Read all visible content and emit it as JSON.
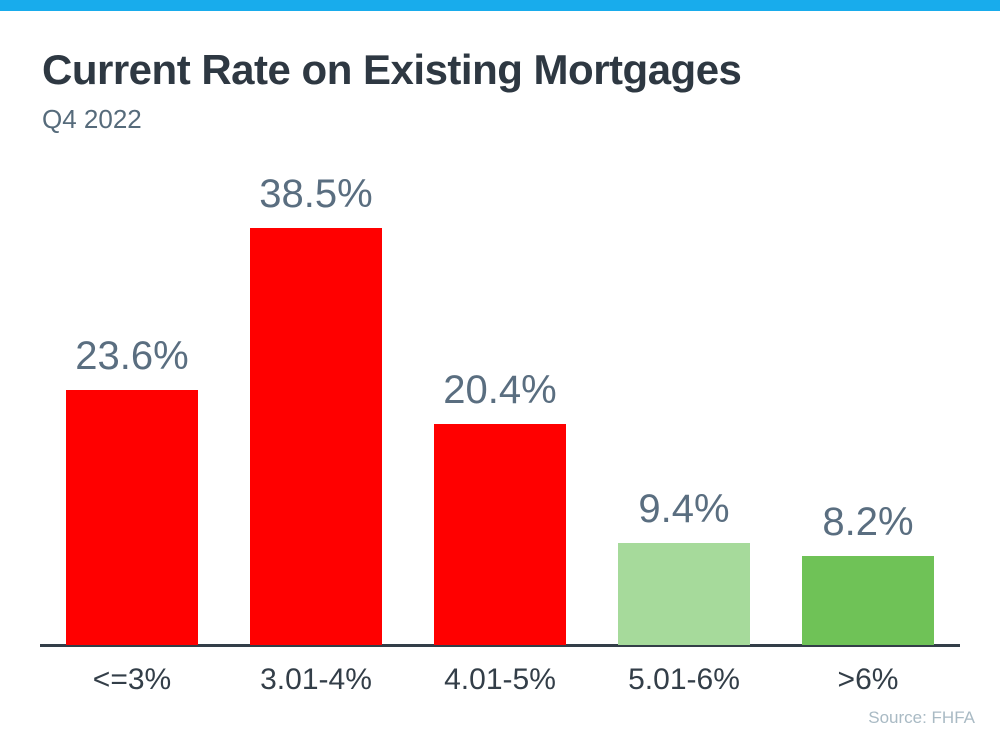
{
  "page": {
    "accent_bar_color": "#18ACEC",
    "title": "Current Rate on Existing Mortgages",
    "subtitle": "Q4 2022",
    "source": "Source: FHFA"
  },
  "chart_data": {
    "type": "bar",
    "title": "Current Rate on Existing Mortgages",
    "subtitle": "Q4 2022",
    "categories": [
      "<=3%",
      "3.01-4%",
      "4.01-5%",
      "5.01-6%",
      ">6%"
    ],
    "values": [
      23.6,
      38.5,
      20.4,
      9.4,
      8.2
    ],
    "value_labels": [
      "23.6%",
      "38.5%",
      "20.4%",
      "9.4%",
      "8.2%"
    ],
    "bar_colors": [
      "#FF0000",
      "#FF0000",
      "#FF0000",
      "#A6DA9B",
      "#6FC257"
    ],
    "xlabel": "",
    "ylabel": "",
    "ylim": [
      0,
      42
    ],
    "grid": false,
    "legend": false,
    "data_labels_position": "above-bars",
    "label_color": "#5A6E80",
    "category_label_color": "#333E48",
    "axis_color": "#333E48",
    "source": "Source: FHFA"
  }
}
